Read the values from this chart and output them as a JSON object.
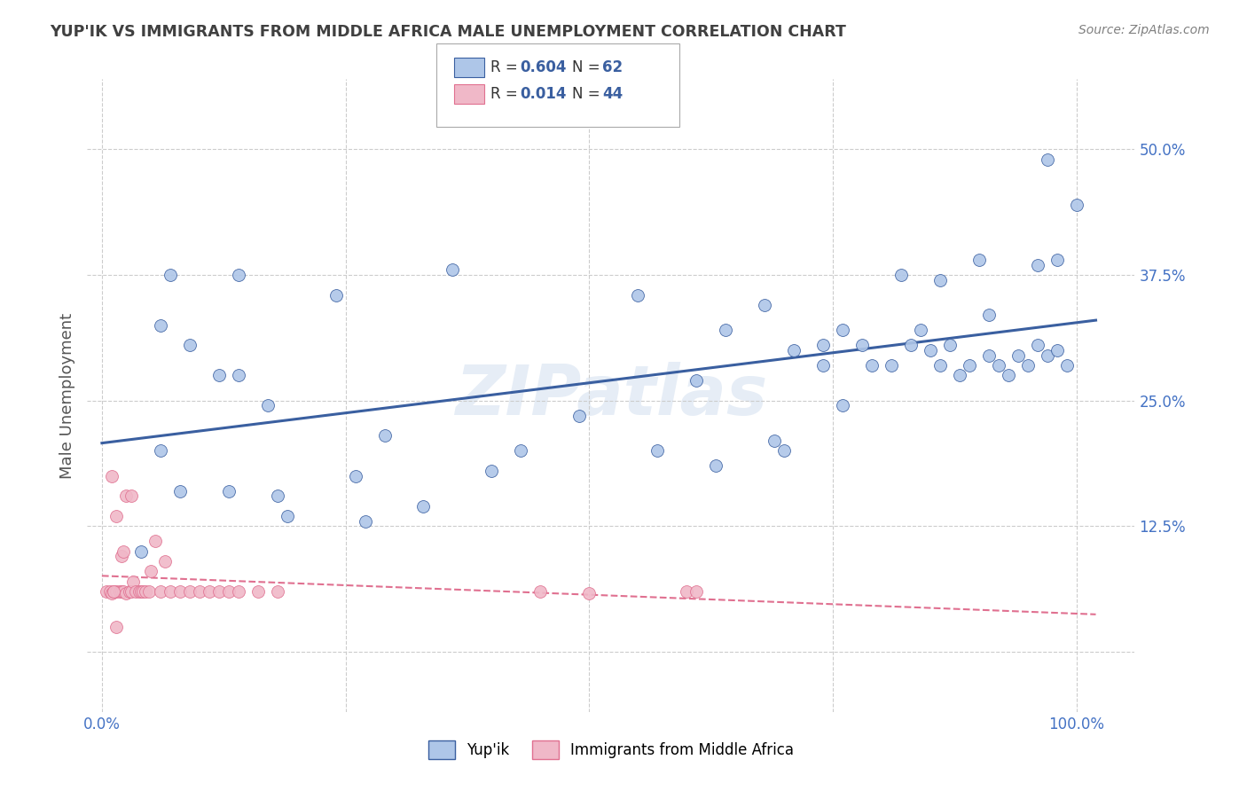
{
  "title": "YUP'IK VS IMMIGRANTS FROM MIDDLE AFRICA MALE UNEMPLOYMENT CORRELATION CHART",
  "source": "Source: ZipAtlas.com",
  "ylabel": "Male Unemployment",
  "watermark": "ZIPatlas",
  "yup_color": "#aec6e8",
  "imm_color": "#f0b8c8",
  "yup_line_color": "#3a5fa0",
  "imm_line_color": "#e07090",
  "grid_color": "#cccccc",
  "bg_color": "#ffffff",
  "title_color": "#404040",
  "source_color": "#808080",
  "yup_x": [
    0.07,
    0.14,
    0.06,
    0.09,
    0.12,
    0.17,
    0.24,
    0.29,
    0.36,
    0.55,
    0.64,
    0.68,
    0.71,
    0.74,
    0.74,
    0.76,
    0.79,
    0.81,
    0.83,
    0.85,
    0.86,
    0.87,
    0.88,
    0.89,
    0.91,
    0.92,
    0.93,
    0.94,
    0.95,
    0.96,
    0.97,
    0.98,
    0.99,
    1.0,
    0.98,
    0.96,
    0.9,
    0.86,
    0.82,
    0.78,
    0.7,
    0.63,
    0.57,
    0.49,
    0.4,
    0.33,
    0.27,
    0.19,
    0.13,
    0.08,
    0.04,
    0.06,
    0.18,
    0.26,
    0.43,
    0.61,
    0.69,
    0.76,
    0.84,
    0.91,
    0.97,
    0.14
  ],
  "yup_y": [
    0.375,
    0.375,
    0.325,
    0.305,
    0.275,
    0.245,
    0.355,
    0.215,
    0.38,
    0.355,
    0.32,
    0.345,
    0.3,
    0.285,
    0.305,
    0.32,
    0.285,
    0.285,
    0.305,
    0.3,
    0.285,
    0.305,
    0.275,
    0.285,
    0.295,
    0.285,
    0.275,
    0.295,
    0.285,
    0.305,
    0.295,
    0.3,
    0.285,
    0.445,
    0.39,
    0.385,
    0.39,
    0.37,
    0.375,
    0.305,
    0.2,
    0.185,
    0.2,
    0.235,
    0.18,
    0.145,
    0.13,
    0.135,
    0.16,
    0.16,
    0.1,
    0.2,
    0.155,
    0.175,
    0.2,
    0.27,
    0.21,
    0.245,
    0.32,
    0.335,
    0.49,
    0.275
  ],
  "imm_x": [
    0.005,
    0.008,
    0.01,
    0.012,
    0.015,
    0.018,
    0.02,
    0.022,
    0.025,
    0.028,
    0.03,
    0.032,
    0.035,
    0.038,
    0.04,
    0.042,
    0.045,
    0.048,
    0.05,
    0.055,
    0.06,
    0.065,
    0.07,
    0.08,
    0.09,
    0.1,
    0.11,
    0.12,
    0.13,
    0.14,
    0.16,
    0.18,
    0.45,
    0.5,
    0.6,
    0.61,
    0.01,
    0.015,
    0.02,
    0.022,
    0.025,
    0.03,
    0.012,
    0.015
  ],
  "imm_y": [
    0.06,
    0.06,
    0.058,
    0.06,
    0.06,
    0.06,
    0.06,
    0.06,
    0.058,
    0.06,
    0.06,
    0.07,
    0.06,
    0.06,
    0.06,
    0.06,
    0.06,
    0.06,
    0.08,
    0.11,
    0.06,
    0.09,
    0.06,
    0.06,
    0.06,
    0.06,
    0.06,
    0.06,
    0.06,
    0.06,
    0.06,
    0.06,
    0.06,
    0.058,
    0.06,
    0.06,
    0.175,
    0.135,
    0.095,
    0.1,
    0.155,
    0.155,
    0.06,
    0.025
  ],
  "yticks": [
    0.0,
    0.125,
    0.25,
    0.375,
    0.5
  ],
  "ytick_labels": [
    "",
    "12.5%",
    "25.0%",
    "37.5%",
    "50.0%"
  ],
  "xticks": [
    0.0,
    0.25,
    0.5,
    0.75,
    1.0
  ],
  "xtick_labels": [
    "0.0%",
    "",
    "",
    "",
    "100.0%"
  ]
}
